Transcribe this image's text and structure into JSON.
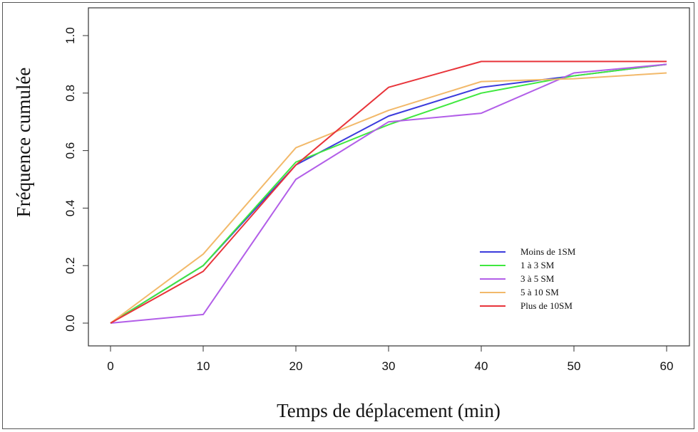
{
  "chart_data": {
    "type": "line",
    "title": "",
    "xlabel": "Temps de déplacement (min)",
    "ylabel": "Fréquence cumulée",
    "x": [
      0,
      10,
      20,
      30,
      40,
      50,
      60
    ],
    "xlim": [
      0,
      60
    ],
    "ylim": [
      0,
      1
    ],
    "xticks": [
      "0",
      "10",
      "20",
      "30",
      "40",
      "50",
      "60"
    ],
    "yticks": [
      "0.0",
      "0.2",
      "0.4",
      "0.6",
      "0.8",
      "1.0"
    ],
    "grid": false,
    "legend_position": "bottom-right",
    "series": [
      {
        "name": "Moins de 1SM",
        "color": "#3b3bdc",
        "values": [
          0.0,
          0.2,
          0.55,
          0.72,
          0.82,
          0.86,
          0.9
        ]
      },
      {
        "name": "1 à 3 SM",
        "color": "#3fe83f",
        "values": [
          0.0,
          0.2,
          0.56,
          0.69,
          0.8,
          0.86,
          0.9
        ]
      },
      {
        "name": "3 à 5 SM",
        "color": "#b25ee8",
        "values": [
          0.0,
          0.03,
          0.5,
          0.7,
          0.73,
          0.87,
          0.9
        ]
      },
      {
        "name": "5 à 10 SM",
        "color": "#f2b96a",
        "values": [
          0.0,
          0.24,
          0.61,
          0.74,
          0.84,
          0.85,
          0.87
        ]
      },
      {
        "name": "Plus de 10SM",
        "color": "#e8343a",
        "values": [
          0.0,
          0.18,
          0.55,
          0.82,
          0.91,
          0.91,
          0.91
        ]
      }
    ]
  }
}
